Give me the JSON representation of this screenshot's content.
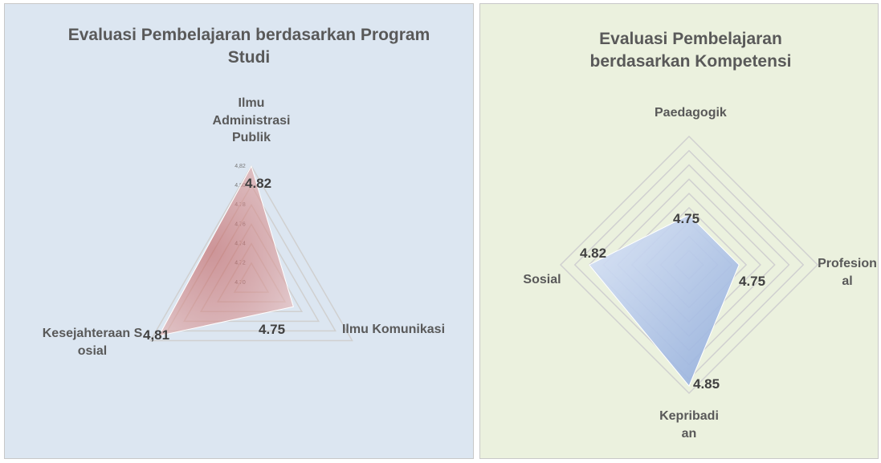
{
  "chart_data": [
    {
      "type": "radar",
      "title": "Evaluasi Pembelajaran berdasarkan Program Studi",
      "categories": [
        "Ilmu Administrasi Publik",
        "Ilmu Komunikasi",
        "Kesejahteraan Sosial"
      ],
      "values": [
        4.82,
        4.75,
        4.81
      ],
      "value_labels": [
        "4.82",
        "4.75",
        "4,81"
      ],
      "color": "#d98c8a",
      "rlim": [
        4.7,
        4.82
      ],
      "rticks": [
        {
          "value": 4.7,
          "label": "4,70"
        },
        {
          "value": 4.72,
          "label": "4,72"
        },
        {
          "value": 4.74,
          "label": "4,74"
        },
        {
          "value": 4.76,
          "label": "4,76"
        },
        {
          "value": 4.78,
          "label": "4,78"
        },
        {
          "value": 4.8,
          "label": "4,80"
        },
        {
          "value": 4.82,
          "label": "4,82"
        }
      ]
    },
    {
      "type": "radar",
      "title": "Evaluasi Pembelajaran berdasarkan Kompetensi",
      "categories": [
        "Paedagogik",
        "Profesional",
        "Kepribadian",
        "Sosial"
      ],
      "values": [
        4.75,
        4.75,
        4.85,
        4.82
      ],
      "color": "#9fb4e6",
      "rlim": [
        4.68,
        4.86
      ],
      "rticks": [
        4.7,
        4.72,
        4.74,
        4.76,
        4.78,
        4.8,
        4.82,
        4.84,
        4.86
      ]
    }
  ]
}
